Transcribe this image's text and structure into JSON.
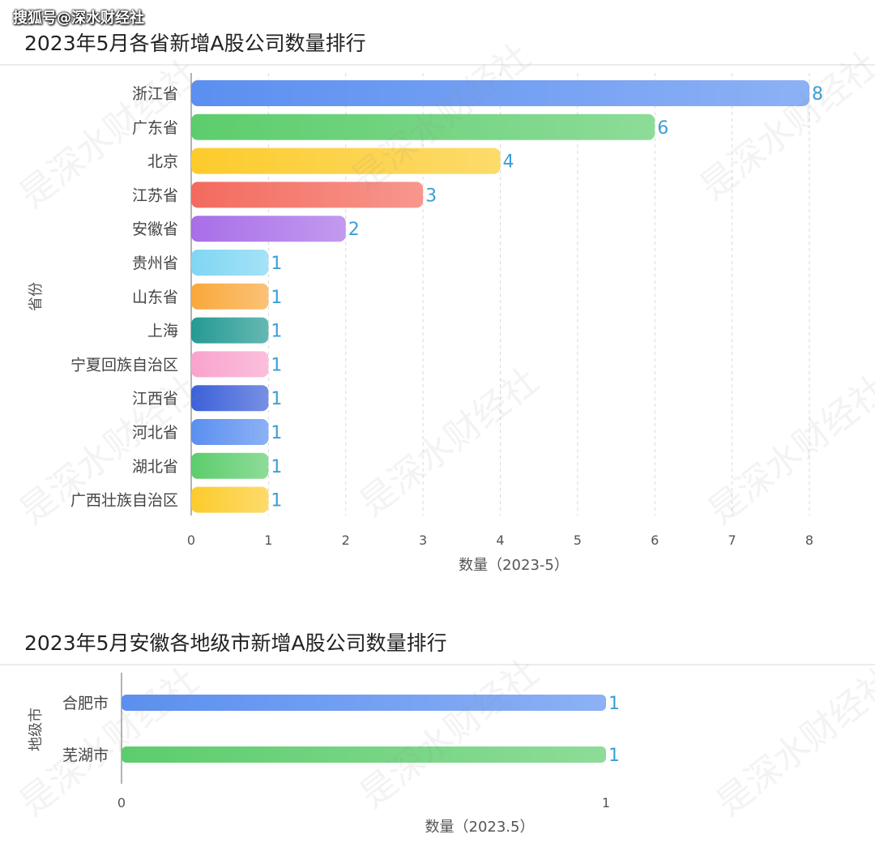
{
  "source_tag": "搜狐号@深水财经社",
  "watermark_text": "是深水财经社",
  "chart_data": [
    {
      "type": "bar",
      "orientation": "horizontal",
      "title": "2023年5月各省新增A股公司数量排行",
      "ylabel": "省份",
      "xlabel": "数量（2023-5）",
      "categories": [
        "浙江省",
        "广东省",
        "北京",
        "江苏省",
        "安徽省",
        "贵州省",
        "山东省",
        "上海",
        "宁夏回族自治区",
        "江西省",
        "河北省",
        "湖北省",
        "广西壮族自治区"
      ],
      "values": [
        8,
        6,
        4,
        3,
        2,
        1,
        1,
        1,
        1,
        1,
        1,
        1,
        1
      ],
      "xlim": [
        0,
        8
      ],
      "ticks": [
        "0",
        "1",
        "2",
        "3",
        "4",
        "5",
        "6",
        "7",
        "8"
      ],
      "colors": [
        "#5b8ff0",
        "#5ccd6c",
        "#fccb2c",
        "#f36a5e",
        "#a86ee8",
        "#7fd6f3",
        "#f9a83b",
        "#249a93",
        "#f9a3cc",
        "#3c61d9",
        "#5b8ff0",
        "#5ccd6c",
        "#fccb2c"
      ],
      "grid": "vertical dashed",
      "legend": "none"
    },
    {
      "type": "bar",
      "orientation": "horizontal",
      "title": "2023年5月安徽各地级市新增A股公司数量排行",
      "ylabel": "地级市",
      "xlabel": "数量（2023.5）",
      "categories": [
        "合肥市",
        "芜湖市"
      ],
      "values": [
        1,
        1
      ],
      "xlim": [
        0,
        1
      ],
      "ticks": [
        "0",
        "1"
      ],
      "colors": [
        "#5b8ff0",
        "#5ccd6c"
      ],
      "grid": "none",
      "legend": "none"
    }
  ]
}
